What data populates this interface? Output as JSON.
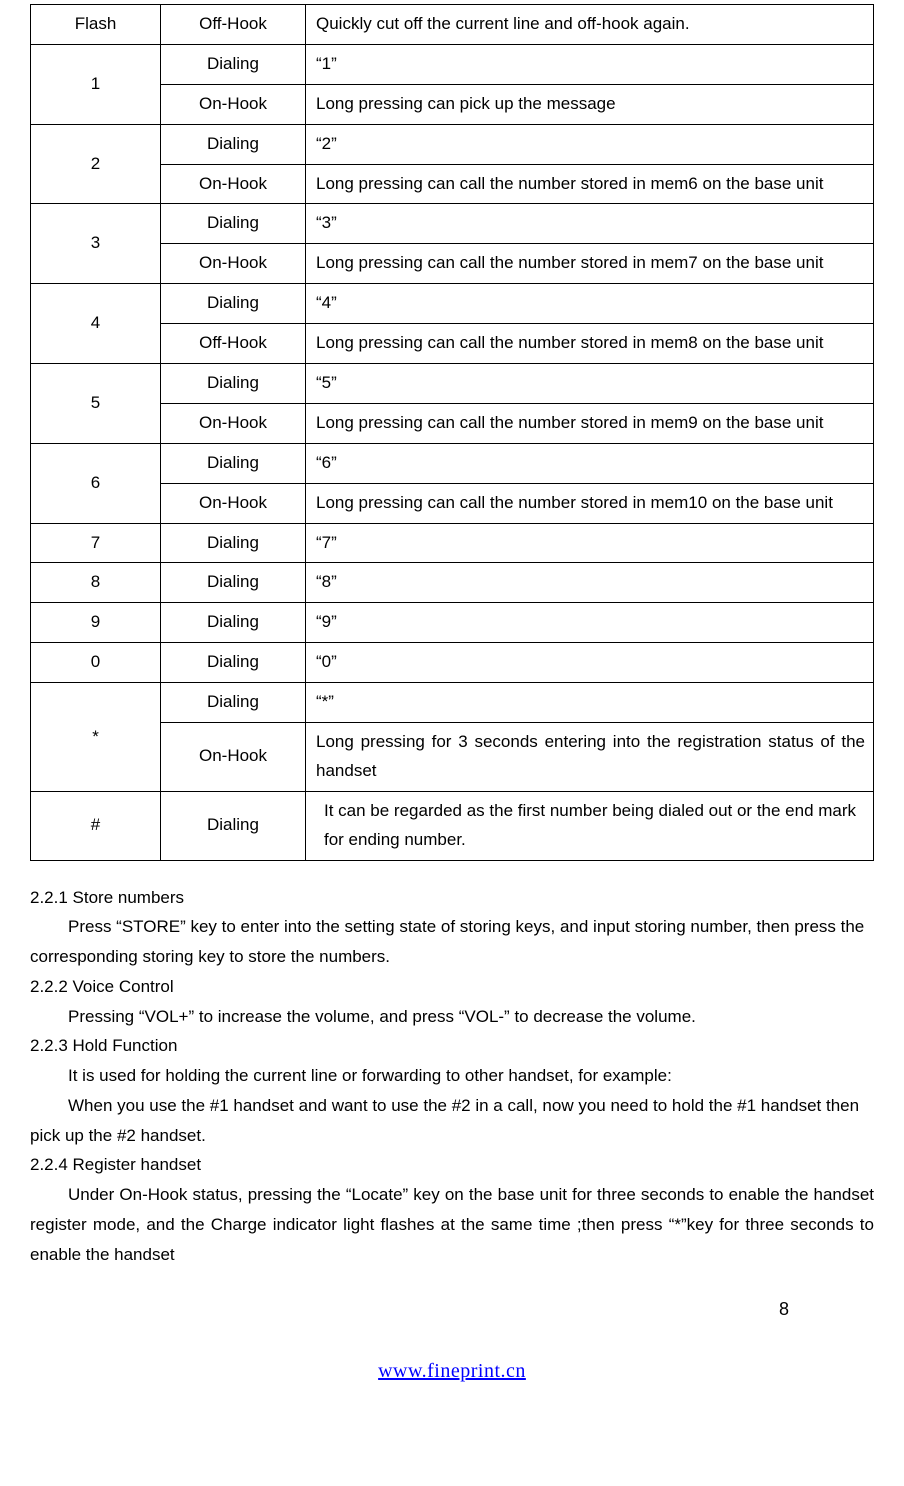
{
  "table": {
    "rows": [
      {
        "key": "Flash",
        "state": "Off-Hook",
        "desc": "Quickly cut off the current line and off-hook again."
      },
      {
        "key": "1",
        "rowspan": 2,
        "state": "Dialing",
        "desc": "“1”"
      },
      {
        "state": "On-Hook",
        "desc": "Long pressing can pick up the message"
      },
      {
        "key": "2",
        "rowspan": 2,
        "state": "Dialing",
        "desc": "“2”"
      },
      {
        "state": "On-Hook",
        "desc": "Long pressing can call the number stored in mem6 on the base unit"
      },
      {
        "key": "3",
        "rowspan": 2,
        "state": "Dialing",
        "desc": "“3”"
      },
      {
        "state": "On-Hook",
        "desc": "Long pressing can call the number stored in mem7 on the base unit"
      },
      {
        "key": "4",
        "rowspan": 2,
        "state": "Dialing",
        "desc": "“4”"
      },
      {
        "state": "Off-Hook",
        "desc": "Long pressing can call the number stored in mem8 on the base unit"
      },
      {
        "key": "5",
        "rowspan": 2,
        "state": "Dialing",
        "desc": "“5”"
      },
      {
        "state": "On-Hook",
        "desc": "Long pressing can call the number stored in mem9 on the base unit"
      },
      {
        "key": "6",
        "rowspan": 2,
        "state": "Dialing",
        "desc": "“6”"
      },
      {
        "state": "On-Hook",
        "desc": "Long pressing can call the number stored in mem10 on the base unit"
      },
      {
        "key": "7",
        "state": "Dialing",
        "desc": "“7”"
      },
      {
        "key": "8",
        "state": "Dialing",
        "desc": "“8”"
      },
      {
        "key": "9",
        "state": "Dialing",
        "desc": "“9”"
      },
      {
        "key": "0",
        "state": "Dialing",
        "desc": "“0”"
      },
      {
        "key": "*",
        "rowspan": 2,
        "state": "Dialing",
        "desc": "“*”"
      },
      {
        "state": "On-Hook",
        "desc": "Long pressing for 3 seconds entering into the registration status of the handset",
        "justify": true
      },
      {
        "key": "#",
        "state": "Dialing",
        "desc": "It can be regarded as the first number being dialed out or the end mark for ending number.",
        "indent": true
      }
    ]
  },
  "sections": {
    "s1": {
      "heading": "2.2.1 Store numbers",
      "body": "Press “STORE” key to enter into the setting state of storing keys, and input storing number, then press the corresponding storing key to store the numbers."
    },
    "s2": {
      "heading": "2.2.2 Voice Control",
      "body": "Pressing “VOL+” to increase the volume, and press “VOL-” to decrease the volume."
    },
    "s3": {
      "heading": "2.2.3 Hold Function",
      "body1": "It is used for holding the current line or forwarding to other handset, for example:",
      "body2": "When you use the #1 handset and want to use the #2 in a call, now you need to hold the #1 handset then pick up the #2 handset."
    },
    "s4": {
      "heading": "2.2.4 Register handset",
      "body": "Under On-Hook status, pressing the “Locate” key on the base unit for three seconds to enable the handset register mode, and the Charge indicator light flashes at the same time ;then press “*”key for three seconds to enable the handset"
    }
  },
  "page_number": "8",
  "footer_url": "www.fineprint.cn"
}
